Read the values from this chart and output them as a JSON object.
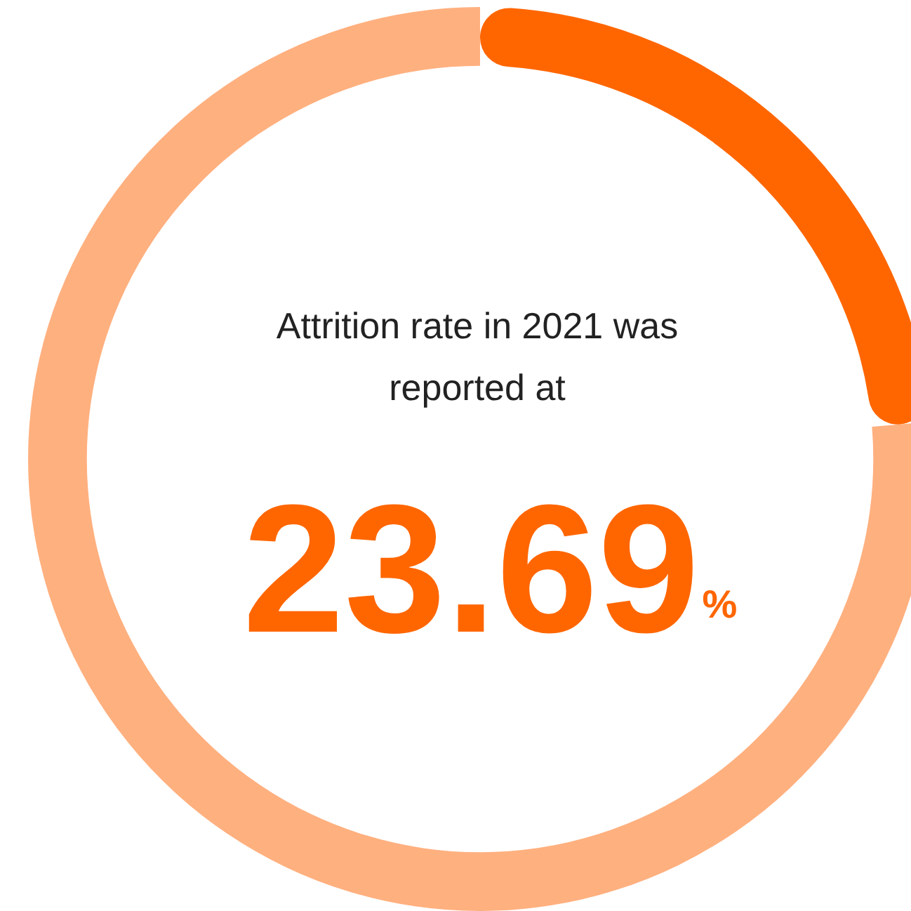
{
  "chart_data": {
    "type": "donut",
    "title": "Attrition rate in 2021 was reported at",
    "categories": [
      null,
      null
    ],
    "values": [
      23.69,
      76.31
    ],
    "colors": [
      "#ff6600",
      "#ffb07f"
    ],
    "annotations": [
      "23.69%"
    ],
    "legend": false
  }
}
